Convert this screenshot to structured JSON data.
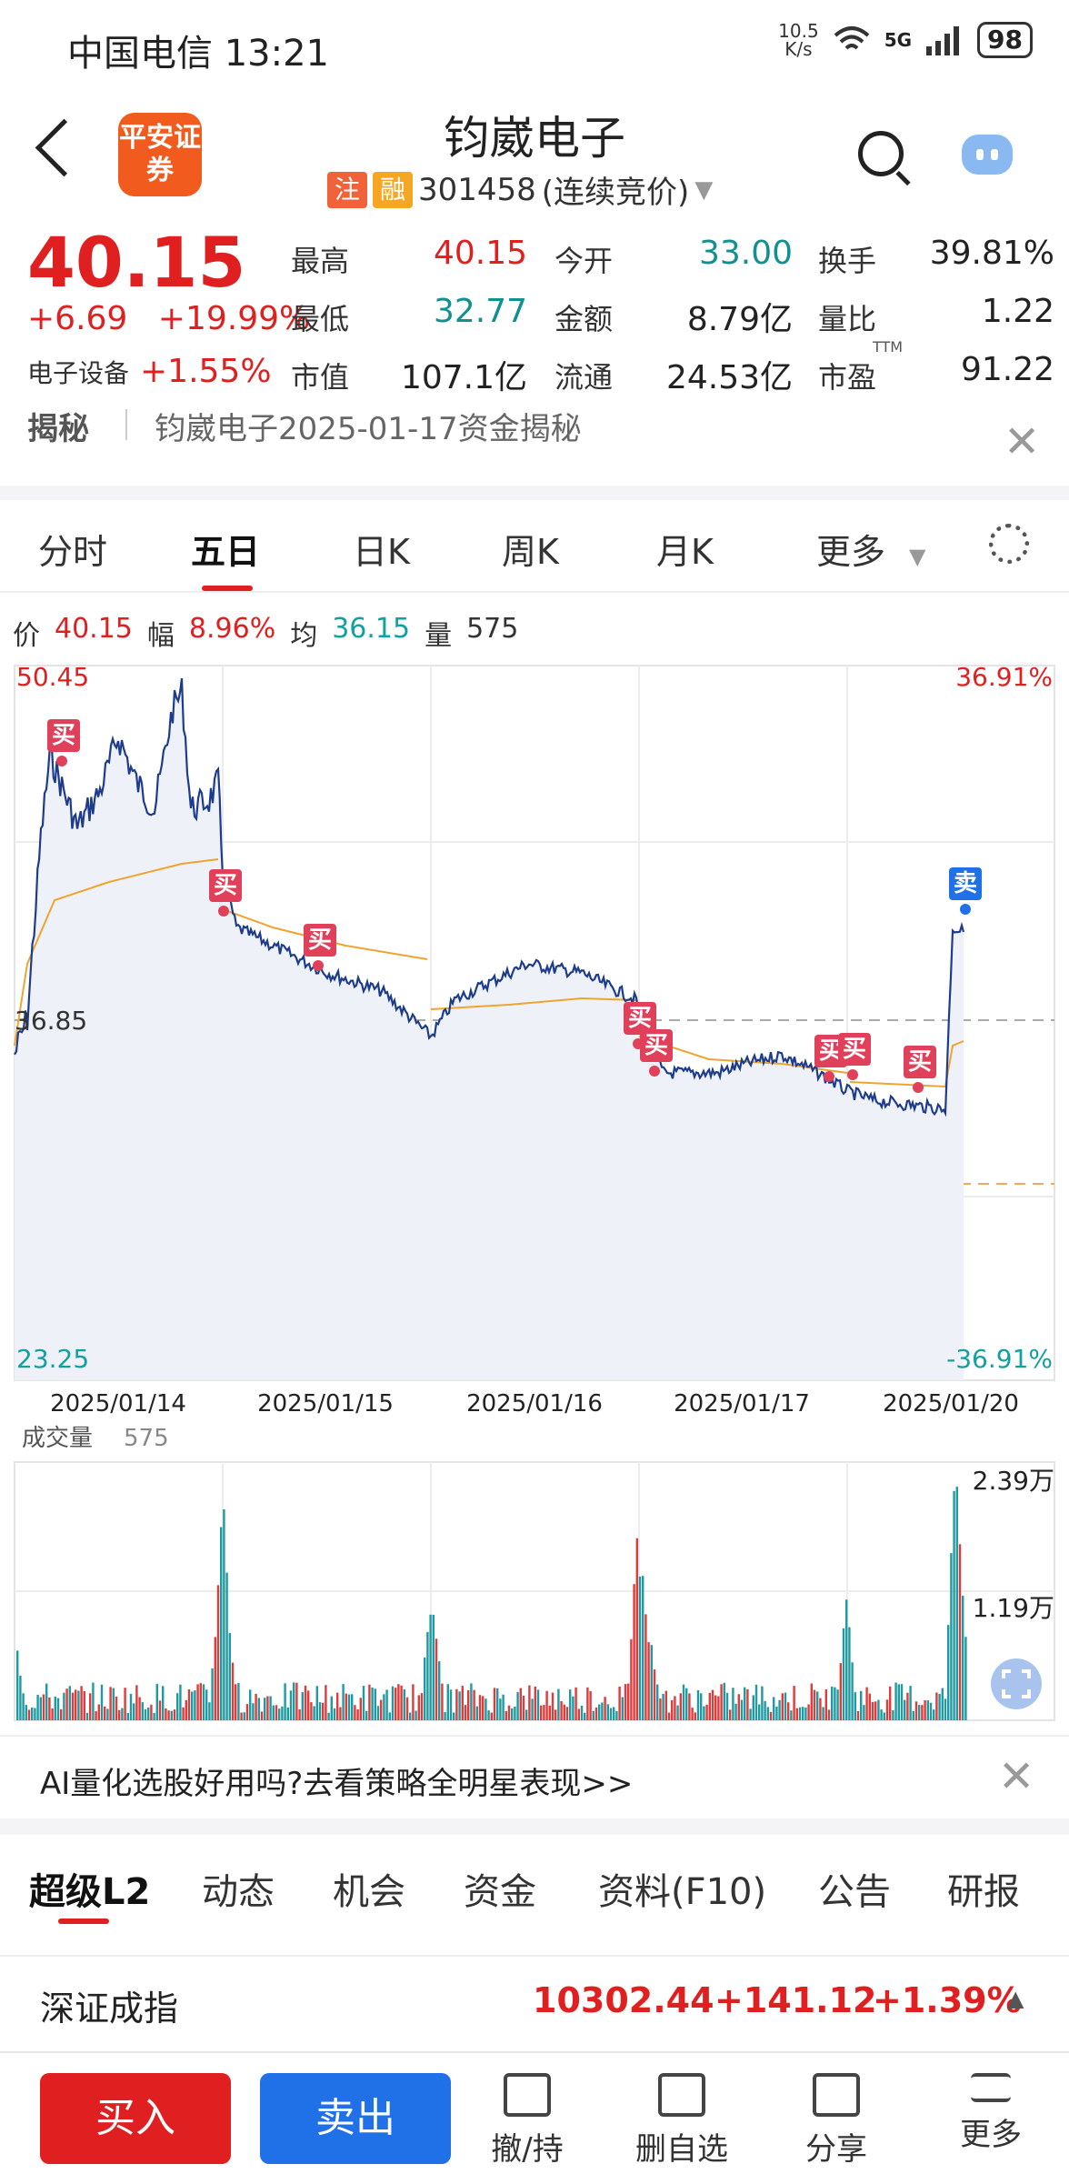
{
  "status_bar": {
    "carrier": "中国电信",
    "time": "13:21",
    "net_speed_value": "10.5",
    "net_speed_unit": "K/s",
    "network": "5G",
    "battery": "98"
  },
  "header": {
    "broker_logo": "平安证券",
    "stock_name": "钧崴电子",
    "tag_zhu": "注",
    "tag_rong": "融",
    "code": "301458",
    "status": "(连续竞价)"
  },
  "quote": {
    "price": "40.15",
    "change": "+6.69",
    "change_pct": "+19.99%",
    "sector": "电子设备",
    "sector_pct": "+1.55%",
    "rows": [
      [
        {
          "label": "最高",
          "value": "40.15"
        },
        {
          "label": "今开",
          "value": "33.00"
        },
        {
          "label": "换手",
          "value": "39.81%"
        }
      ],
      [
        {
          "label": "最低",
          "value": "32.77"
        },
        {
          "label": "金额",
          "value": "8.79亿"
        },
        {
          "label": "量比",
          "value": "1.22"
        }
      ],
      [
        {
          "label": "市值",
          "value": "107.1亿"
        },
        {
          "label": "流通",
          "value": "24.53亿"
        },
        {
          "label": "市盈",
          "value": "91.22"
        }
      ]
    ],
    "ttm": "TTM"
  },
  "notice": {
    "label": "揭秘",
    "text": "钧崴电子2025-01-17资金揭秘"
  },
  "chart_tabs": [
    "分时",
    "五日",
    "日K",
    "周K",
    "月K",
    "更多"
  ],
  "legend": {
    "price_label": "价",
    "price": "40.15",
    "amp_label": "幅",
    "amp": "8.96%",
    "avg_label": "均",
    "avg": "36.15",
    "vol_label": "量",
    "vol": "575"
  },
  "chart_data": {
    "type": "line",
    "x": [
      "2025/01/14",
      "2025/01/15",
      "2025/01/16",
      "2025/01/17",
      "2025/01/20"
    ],
    "ylim": [
      23.25,
      50.45
    ],
    "y_left_labels": [
      "50.45",
      "36.85",
      "23.25"
    ],
    "y_right_labels": [
      "36.91%",
      "-36.91%"
    ],
    "reference": 36.85,
    "markers": [
      "买",
      "买",
      "买",
      "买",
      "买",
      "买",
      "买",
      "买",
      "卖"
    ],
    "volume": {
      "label": "成交量",
      "value": "575",
      "axis_labels": [
        "2.39万",
        "1.19万"
      ]
    }
  },
  "ad": {
    "text": "AI量化选股好用吗?去看策略全明星表现>>"
  },
  "bottom_tabs": [
    "超级L2",
    "动态",
    "机会",
    "资金",
    "资料(F10)",
    "公告",
    "研报"
  ],
  "index_bar": {
    "name": "深证成指",
    "value": "10302.44",
    "change": "+141.12",
    "pct": "+1.39%"
  },
  "actions": {
    "buy": "买入",
    "sell": "卖出",
    "items": [
      "撤/持",
      "删自选",
      "分享",
      "更多"
    ]
  },
  "colors": {
    "up": "#e02020",
    "down": "#10908f",
    "accent": "#2070e8"
  }
}
